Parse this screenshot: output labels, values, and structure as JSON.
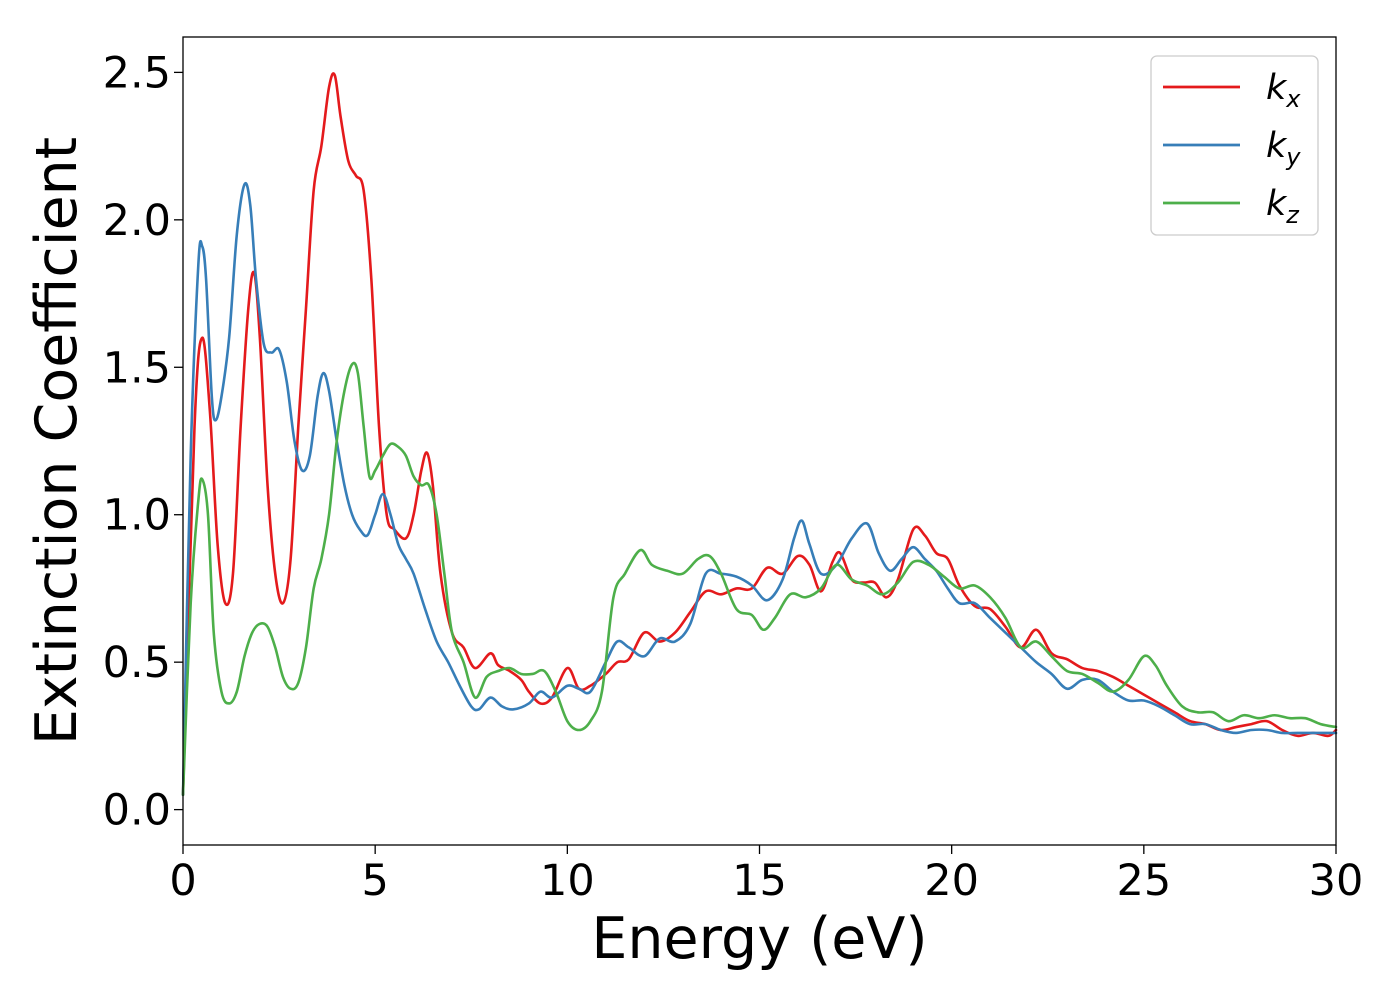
{
  "chart_data": {
    "type": "line",
    "title": "",
    "xlabel": "Energy (eV)",
    "ylabel": "Extinction Coefficient",
    "xlim": [
      0,
      30
    ],
    "ylim": [
      -0.12,
      2.62
    ],
    "xticks": [
      0,
      5,
      10,
      15,
      20,
      25,
      30
    ],
    "xtick_labels": [
      "0",
      "5",
      "10",
      "15",
      "20",
      "25",
      "30"
    ],
    "yticks": [
      0.0,
      0.5,
      1.0,
      1.5,
      2.0,
      2.5
    ],
    "ytick_labels": [
      "0.0",
      "0.5",
      "1.0",
      "1.5",
      "2.0",
      "2.5"
    ],
    "grid": false,
    "legend_position": "top-right",
    "series": [
      {
        "name": "k",
        "name_sub": "x",
        "color": "#e41a1c",
        "points": [
          [
            0,
            0.05
          ],
          [
            0.3,
            1.3
          ],
          [
            0.5,
            1.6
          ],
          [
            0.7,
            1.35
          ],
          [
            0.9,
            0.9
          ],
          [
            1.1,
            0.7
          ],
          [
            1.3,
            0.8
          ],
          [
            1.5,
            1.3
          ],
          [
            1.7,
            1.7
          ],
          [
            1.85,
            1.82
          ],
          [
            2.0,
            1.6
          ],
          [
            2.2,
            1.1
          ],
          [
            2.4,
            0.8
          ],
          [
            2.6,
            0.7
          ],
          [
            2.8,
            0.85
          ],
          [
            3.0,
            1.3
          ],
          [
            3.2,
            1.7
          ],
          [
            3.4,
            2.1
          ],
          [
            3.6,
            2.25
          ],
          [
            3.8,
            2.45
          ],
          [
            3.95,
            2.49
          ],
          [
            4.1,
            2.35
          ],
          [
            4.3,
            2.2
          ],
          [
            4.5,
            2.15
          ],
          [
            4.7,
            2.1
          ],
          [
            4.9,
            1.8
          ],
          [
            5.1,
            1.3
          ],
          [
            5.3,
            1.0
          ],
          [
            5.5,
            0.95
          ],
          [
            5.8,
            0.92
          ],
          [
            6.0,
            1.0
          ],
          [
            6.2,
            1.15
          ],
          [
            6.35,
            1.21
          ],
          [
            6.5,
            1.1
          ],
          [
            6.7,
            0.8
          ],
          [
            7.0,
            0.6
          ],
          [
            7.3,
            0.55
          ],
          [
            7.6,
            0.48
          ],
          [
            8.0,
            0.53
          ],
          [
            8.2,
            0.49
          ],
          [
            8.5,
            0.47
          ],
          [
            8.8,
            0.44
          ],
          [
            9.0,
            0.4
          ],
          [
            9.3,
            0.36
          ],
          [
            9.6,
            0.38
          ],
          [
            10.0,
            0.48
          ],
          [
            10.3,
            0.41
          ],
          [
            10.6,
            0.42
          ],
          [
            11.0,
            0.46
          ],
          [
            11.3,
            0.5
          ],
          [
            11.6,
            0.51
          ],
          [
            12.0,
            0.6
          ],
          [
            12.4,
            0.57
          ],
          [
            12.8,
            0.6
          ],
          [
            13.2,
            0.67
          ],
          [
            13.6,
            0.74
          ],
          [
            14.0,
            0.73
          ],
          [
            14.4,
            0.75
          ],
          [
            14.8,
            0.75
          ],
          [
            15.2,
            0.82
          ],
          [
            15.6,
            0.8
          ],
          [
            16.0,
            0.86
          ],
          [
            16.3,
            0.83
          ],
          [
            16.6,
            0.74
          ],
          [
            16.9,
            0.84
          ],
          [
            17.1,
            0.87
          ],
          [
            17.4,
            0.78
          ],
          [
            17.7,
            0.77
          ],
          [
            18.0,
            0.77
          ],
          [
            18.3,
            0.72
          ],
          [
            18.6,
            0.78
          ],
          [
            19.0,
            0.95
          ],
          [
            19.3,
            0.93
          ],
          [
            19.6,
            0.87
          ],
          [
            19.9,
            0.85
          ],
          [
            20.2,
            0.76
          ],
          [
            20.6,
            0.69
          ],
          [
            21.0,
            0.68
          ],
          [
            21.4,
            0.62
          ],
          [
            21.8,
            0.55
          ],
          [
            22.2,
            0.61
          ],
          [
            22.6,
            0.53
          ],
          [
            23.0,
            0.51
          ],
          [
            23.4,
            0.48
          ],
          [
            23.8,
            0.47
          ],
          [
            24.2,
            0.45
          ],
          [
            24.6,
            0.42
          ],
          [
            25.0,
            0.39
          ],
          [
            25.4,
            0.36
          ],
          [
            25.8,
            0.33
          ],
          [
            26.2,
            0.3
          ],
          [
            26.6,
            0.29
          ],
          [
            27.0,
            0.27
          ],
          [
            27.4,
            0.28
          ],
          [
            27.8,
            0.29
          ],
          [
            28.2,
            0.3
          ],
          [
            28.6,
            0.27
          ],
          [
            29.0,
            0.25
          ],
          [
            29.4,
            0.26
          ],
          [
            29.8,
            0.25
          ],
          [
            30.0,
            0.27
          ]
        ]
      },
      {
        "name": "k",
        "name_sub": "y",
        "color": "#377eb8",
        "points": [
          [
            0,
            0.05
          ],
          [
            0.2,
            1.2
          ],
          [
            0.4,
            1.85
          ],
          [
            0.5,
            1.91
          ],
          [
            0.6,
            1.8
          ],
          [
            0.75,
            1.4
          ],
          [
            0.85,
            1.32
          ],
          [
            1.0,
            1.4
          ],
          [
            1.2,
            1.6
          ],
          [
            1.4,
            1.95
          ],
          [
            1.6,
            2.12
          ],
          [
            1.75,
            2.05
          ],
          [
            1.9,
            1.8
          ],
          [
            2.1,
            1.58
          ],
          [
            2.3,
            1.55
          ],
          [
            2.5,
            1.56
          ],
          [
            2.7,
            1.45
          ],
          [
            2.9,
            1.25
          ],
          [
            3.1,
            1.15
          ],
          [
            3.3,
            1.2
          ],
          [
            3.5,
            1.4
          ],
          [
            3.65,
            1.48
          ],
          [
            3.8,
            1.42
          ],
          [
            4.0,
            1.25
          ],
          [
            4.2,
            1.1
          ],
          [
            4.4,
            1.0
          ],
          [
            4.6,
            0.95
          ],
          [
            4.8,
            0.93
          ],
          [
            5.0,
            1.0
          ],
          [
            5.2,
            1.07
          ],
          [
            5.4,
            1.0
          ],
          [
            5.6,
            0.9
          ],
          [
            5.8,
            0.85
          ],
          [
            6.0,
            0.8
          ],
          [
            6.3,
            0.68
          ],
          [
            6.6,
            0.57
          ],
          [
            6.9,
            0.5
          ],
          [
            7.2,
            0.42
          ],
          [
            7.5,
            0.35
          ],
          [
            7.7,
            0.34
          ],
          [
            8.0,
            0.38
          ],
          [
            8.3,
            0.35
          ],
          [
            8.6,
            0.34
          ],
          [
            9.0,
            0.36
          ],
          [
            9.3,
            0.4
          ],
          [
            9.6,
            0.38
          ],
          [
            10.0,
            0.42
          ],
          [
            10.3,
            0.41
          ],
          [
            10.6,
            0.4
          ],
          [
            11.0,
            0.5
          ],
          [
            11.3,
            0.57
          ],
          [
            11.6,
            0.55
          ],
          [
            12.0,
            0.52
          ],
          [
            12.4,
            0.58
          ],
          [
            12.8,
            0.57
          ],
          [
            13.2,
            0.63
          ],
          [
            13.6,
            0.8
          ],
          [
            14.0,
            0.8
          ],
          [
            14.4,
            0.79
          ],
          [
            14.8,
            0.76
          ],
          [
            15.2,
            0.71
          ],
          [
            15.6,
            0.78
          ],
          [
            15.9,
            0.92
          ],
          [
            16.1,
            0.98
          ],
          [
            16.3,
            0.9
          ],
          [
            16.6,
            0.8
          ],
          [
            17.0,
            0.83
          ],
          [
            17.4,
            0.92
          ],
          [
            17.8,
            0.97
          ],
          [
            18.1,
            0.87
          ],
          [
            18.4,
            0.81
          ],
          [
            18.7,
            0.85
          ],
          [
            19.0,
            0.89
          ],
          [
            19.3,
            0.85
          ],
          [
            19.6,
            0.81
          ],
          [
            19.9,
            0.75
          ],
          [
            20.2,
            0.7
          ],
          [
            20.6,
            0.7
          ],
          [
            21.0,
            0.65
          ],
          [
            21.4,
            0.6
          ],
          [
            21.8,
            0.55
          ],
          [
            22.2,
            0.5
          ],
          [
            22.6,
            0.46
          ],
          [
            23.0,
            0.41
          ],
          [
            23.4,
            0.44
          ],
          [
            23.8,
            0.44
          ],
          [
            24.2,
            0.4
          ],
          [
            24.6,
            0.37
          ],
          [
            25.0,
            0.37
          ],
          [
            25.4,
            0.35
          ],
          [
            25.8,
            0.32
          ],
          [
            26.2,
            0.29
          ],
          [
            26.6,
            0.29
          ],
          [
            27.0,
            0.27
          ],
          [
            27.4,
            0.26
          ],
          [
            27.8,
            0.27
          ],
          [
            28.2,
            0.27
          ],
          [
            28.6,
            0.26
          ],
          [
            29.0,
            0.26
          ],
          [
            29.4,
            0.26
          ],
          [
            29.8,
            0.26
          ],
          [
            30.0,
            0.26
          ]
        ]
      },
      {
        "name": "k",
        "name_sub": "z",
        "color": "#4daf4a",
        "points": [
          [
            0,
            0.05
          ],
          [
            0.2,
            0.7
          ],
          [
            0.4,
            1.05
          ],
          [
            0.5,
            1.12
          ],
          [
            0.65,
            1.0
          ],
          [
            0.8,
            0.6
          ],
          [
            1.0,
            0.4
          ],
          [
            1.2,
            0.36
          ],
          [
            1.4,
            0.4
          ],
          [
            1.6,
            0.52
          ],
          [
            1.8,
            0.6
          ],
          [
            2.0,
            0.63
          ],
          [
            2.2,
            0.62
          ],
          [
            2.4,
            0.55
          ],
          [
            2.6,
            0.45
          ],
          [
            2.8,
            0.41
          ],
          [
            3.0,
            0.43
          ],
          [
            3.2,
            0.55
          ],
          [
            3.4,
            0.75
          ],
          [
            3.6,
            0.85
          ],
          [
            3.8,
            1.0
          ],
          [
            4.0,
            1.25
          ],
          [
            4.2,
            1.42
          ],
          [
            4.4,
            1.51
          ],
          [
            4.55,
            1.48
          ],
          [
            4.7,
            1.3
          ],
          [
            4.85,
            1.13
          ],
          [
            5.0,
            1.15
          ],
          [
            5.2,
            1.2
          ],
          [
            5.4,
            1.24
          ],
          [
            5.6,
            1.23
          ],
          [
            5.8,
            1.2
          ],
          [
            6.0,
            1.13
          ],
          [
            6.2,
            1.1
          ],
          [
            6.4,
            1.1
          ],
          [
            6.6,
            1.0
          ],
          [
            6.8,
            0.8
          ],
          [
            7.0,
            0.6
          ],
          [
            7.3,
            0.5
          ],
          [
            7.6,
            0.38
          ],
          [
            7.9,
            0.45
          ],
          [
            8.2,
            0.47
          ],
          [
            8.5,
            0.48
          ],
          [
            8.8,
            0.46
          ],
          [
            9.1,
            0.46
          ],
          [
            9.4,
            0.47
          ],
          [
            9.7,
            0.4
          ],
          [
            10.0,
            0.3
          ],
          [
            10.3,
            0.27
          ],
          [
            10.6,
            0.3
          ],
          [
            10.9,
            0.4
          ],
          [
            11.2,
            0.72
          ],
          [
            11.5,
            0.8
          ],
          [
            11.9,
            0.88
          ],
          [
            12.2,
            0.83
          ],
          [
            12.6,
            0.81
          ],
          [
            13.0,
            0.8
          ],
          [
            13.4,
            0.85
          ],
          [
            13.7,
            0.86
          ],
          [
            14.0,
            0.8
          ],
          [
            14.4,
            0.68
          ],
          [
            14.8,
            0.66
          ],
          [
            15.1,
            0.61
          ],
          [
            15.4,
            0.65
          ],
          [
            15.8,
            0.73
          ],
          [
            16.2,
            0.72
          ],
          [
            16.6,
            0.75
          ],
          [
            17.0,
            0.83
          ],
          [
            17.4,
            0.78
          ],
          [
            17.8,
            0.76
          ],
          [
            18.2,
            0.73
          ],
          [
            18.6,
            0.77
          ],
          [
            19.0,
            0.84
          ],
          [
            19.4,
            0.83
          ],
          [
            19.8,
            0.79
          ],
          [
            20.2,
            0.75
          ],
          [
            20.6,
            0.76
          ],
          [
            21.0,
            0.72
          ],
          [
            21.4,
            0.65
          ],
          [
            21.8,
            0.55
          ],
          [
            22.2,
            0.57
          ],
          [
            22.6,
            0.52
          ],
          [
            23.0,
            0.47
          ],
          [
            23.4,
            0.46
          ],
          [
            23.8,
            0.43
          ],
          [
            24.2,
            0.4
          ],
          [
            24.6,
            0.44
          ],
          [
            25.0,
            0.52
          ],
          [
            25.3,
            0.49
          ],
          [
            25.6,
            0.42
          ],
          [
            26.0,
            0.35
          ],
          [
            26.4,
            0.33
          ],
          [
            26.8,
            0.33
          ],
          [
            27.2,
            0.3
          ],
          [
            27.6,
            0.32
          ],
          [
            28.0,
            0.31
          ],
          [
            28.4,
            0.32
          ],
          [
            28.8,
            0.31
          ],
          [
            29.2,
            0.31
          ],
          [
            29.6,
            0.29
          ],
          [
            30.0,
            0.28
          ]
        ]
      }
    ]
  }
}
